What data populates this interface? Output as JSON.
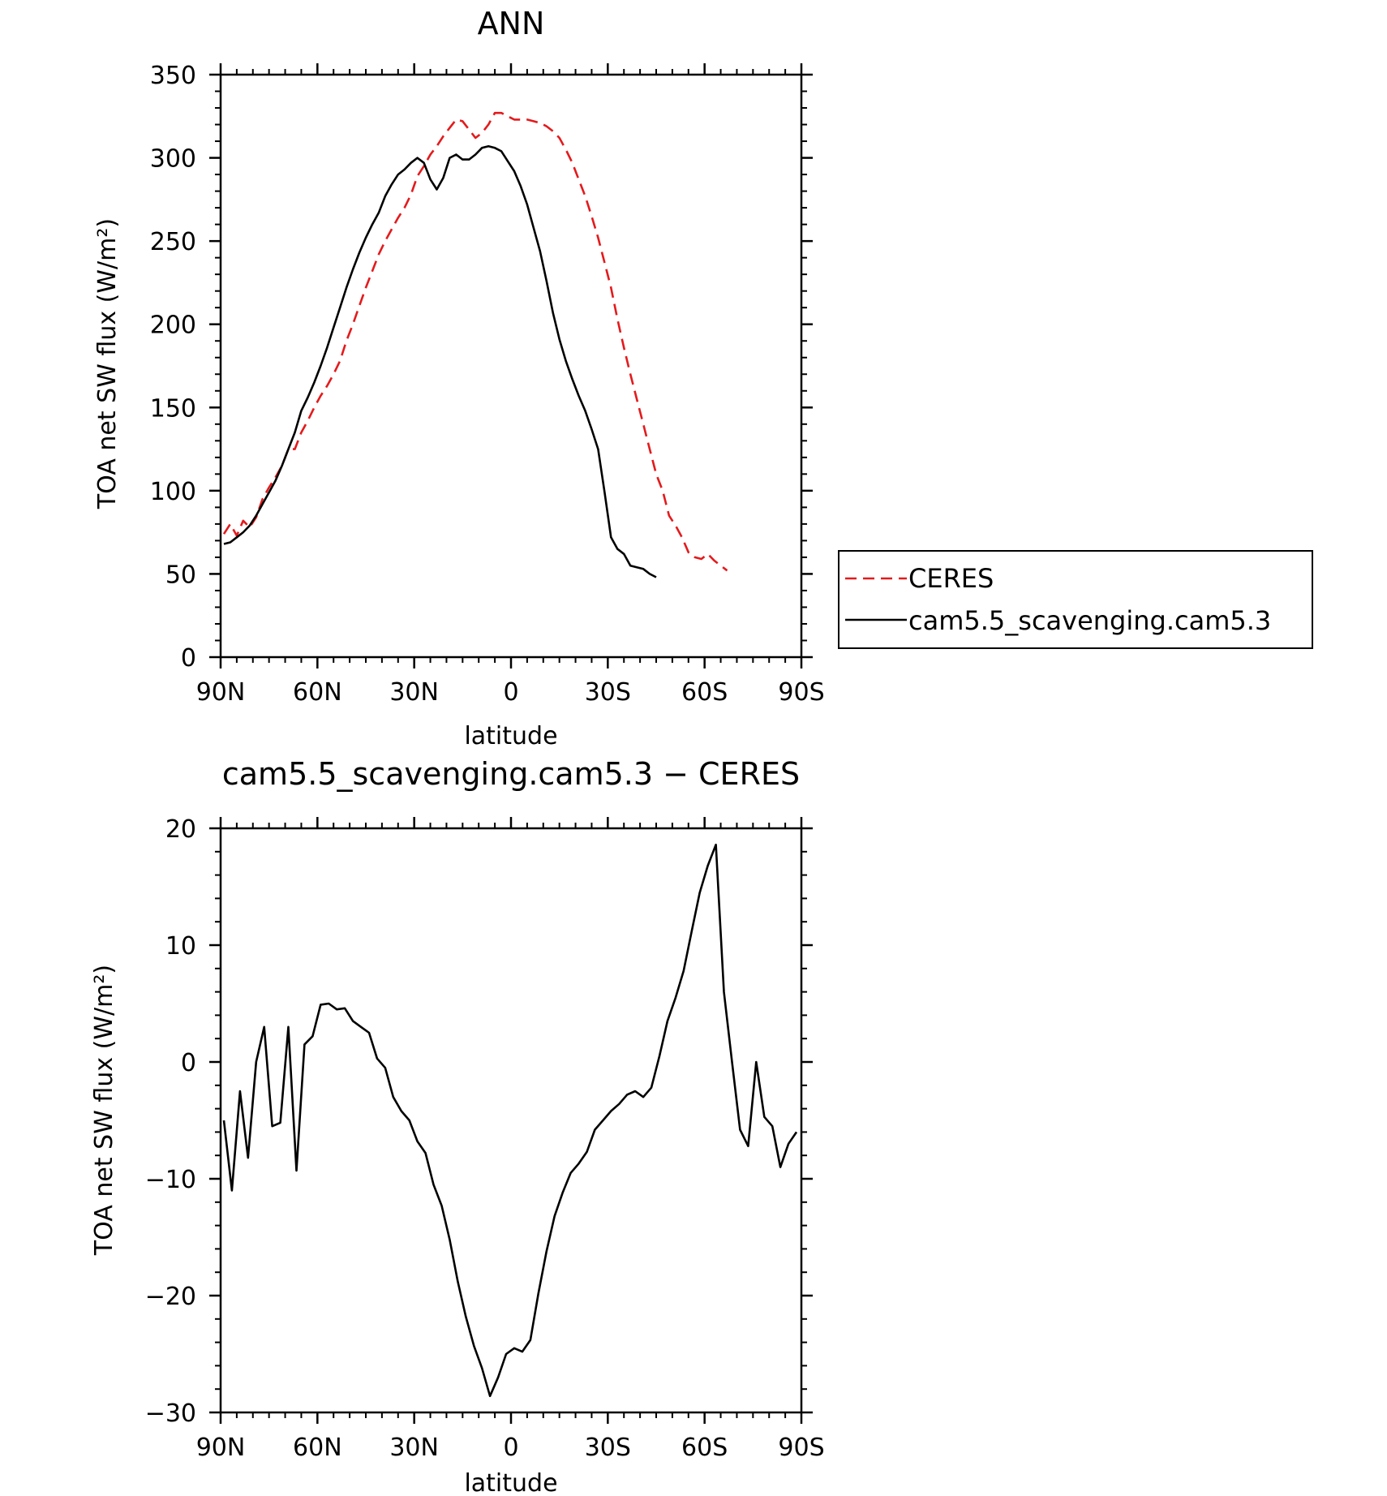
{
  "chart_data": [
    {
      "type": "line",
      "title": "ANN",
      "xlabel": "latitude",
      "ylabel": "TOA net SW flux (W/m²)",
      "xlim": [
        90,
        -90
      ],
      "ylim": [
        0,
        350
      ],
      "xticks": [
        90,
        60,
        30,
        0,
        -30,
        -60,
        -90
      ],
      "xtick_labels": [
        "90N",
        "60N",
        "30N",
        "0",
        "30S",
        "60S",
        "90S"
      ],
      "yticks": [
        0,
        50,
        100,
        150,
        200,
        250,
        300,
        350
      ],
      "ytick_labels": [
        "0",
        "50",
        "100",
        "150",
        "200",
        "250",
        "300",
        "350"
      ],
      "legend_position": "right",
      "series": [
        {
          "name": "CERES",
          "color": "#e41a1c",
          "style": "dashed",
          "points": [
            [
              89,
              74
            ],
            [
              87,
              80
            ],
            [
              85,
              73
            ],
            [
              83,
              82
            ],
            [
              81,
              78
            ],
            [
              79,
              84
            ],
            [
              77,
              95
            ],
            [
              75,
              102
            ],
            [
              73,
              108
            ],
            [
              71,
              115
            ],
            [
              69,
              125
            ],
            [
              67,
              125
            ],
            [
              65,
              135
            ],
            [
              63,
              142
            ],
            [
              61,
              150
            ],
            [
              59,
              157
            ],
            [
              57,
              163
            ],
            [
              55,
              170
            ],
            [
              53,
              178
            ],
            [
              51,
              190
            ],
            [
              49,
              200
            ],
            [
              47,
              211
            ],
            [
              45,
              222
            ],
            [
              43,
              232
            ],
            [
              41,
              242
            ],
            [
              39,
              250
            ],
            [
              37,
              257
            ],
            [
              35,
              264
            ],
            [
              33,
              270
            ],
            [
              31,
              278
            ],
            [
              29,
              289
            ],
            [
              27,
              295
            ],
            [
              25,
              302
            ],
            [
              23,
              307
            ],
            [
              21,
              313
            ],
            [
              19,
              318
            ],
            [
              17,
              323
            ],
            [
              15,
              322
            ],
            [
              13,
              317
            ],
            [
              11,
              312
            ],
            [
              9,
              315
            ],
            [
              7,
              320
            ],
            [
              5,
              327
            ],
            [
              3,
              327
            ],
            [
              1,
              325
            ],
            [
              -1,
              323
            ],
            [
              -3,
              323
            ],
            [
              -5,
              323
            ],
            [
              -7,
              322
            ],
            [
              -9,
              321
            ],
            [
              -11,
              319
            ],
            [
              -13,
              316
            ],
            [
              -15,
              312
            ],
            [
              -17,
              305
            ],
            [
              -19,
              297
            ],
            [
              -21,
              287
            ],
            [
              -23,
              277
            ],
            [
              -25,
              265
            ],
            [
              -27,
              252
            ],
            [
              -29,
              237
            ],
            [
              -31,
              222
            ],
            [
              -33,
              203
            ],
            [
              -35,
              186
            ],
            [
              -37,
              170
            ],
            [
              -39,
              155
            ],
            [
              -41,
              140
            ],
            [
              -43,
              125
            ],
            [
              -45,
              110
            ],
            [
              -47,
              100
            ],
            [
              -49,
              85
            ],
            [
              -51,
              79
            ],
            [
              -53,
              72
            ],
            [
              -55,
              63
            ],
            [
              -57,
              60
            ],
            [
              -59,
              59
            ],
            [
              -61,
              62
            ],
            [
              -63,
              58
            ],
            [
              -65,
              55
            ],
            [
              -67,
              52
            ]
          ]
        },
        {
          "name": "cam5.5_scavenging.cam5.3",
          "color": "#000000",
          "style": "solid",
          "points": [
            [
              89,
              68
            ],
            [
              87,
              69
            ],
            [
              85,
              72
            ],
            [
              83,
              75
            ],
            [
              81,
              79
            ],
            [
              79,
              85
            ],
            [
              77,
              92
            ],
            [
              75,
              99
            ],
            [
              73,
              106
            ],
            [
              71,
              115
            ],
            [
              69,
              125
            ],
            [
              67,
              135
            ],
            [
              65,
              148
            ],
            [
              63,
              156
            ],
            [
              61,
              165
            ],
            [
              59,
              175
            ],
            [
              57,
              186
            ],
            [
              55,
              198
            ],
            [
              53,
              210
            ],
            [
              51,
              222
            ],
            [
              49,
              233
            ],
            [
              47,
              243
            ],
            [
              45,
              252
            ],
            [
              43,
              260
            ],
            [
              41,
              267
            ],
            [
              39,
              277
            ],
            [
              37,
              284
            ],
            [
              35,
              290
            ],
            [
              33,
              293
            ],
            [
              31,
              297
            ],
            [
              29,
              300
            ],
            [
              27,
              297
            ],
            [
              25,
              287
            ],
            [
              23,
              281
            ],
            [
              21,
              288
            ],
            [
              19,
              300
            ],
            [
              17,
              302
            ],
            [
              15,
              299
            ],
            [
              13,
              299
            ],
            [
              11,
              302
            ],
            [
              9,
              306
            ],
            [
              7,
              307
            ],
            [
              5,
              306
            ],
            [
              3,
              304
            ],
            [
              1,
              298
            ],
            [
              -1,
              292
            ],
            [
              -3,
              283
            ],
            [
              -5,
              272
            ],
            [
              -7,
              258
            ],
            [
              -9,
              244
            ],
            [
              -11,
              226
            ],
            [
              -13,
              207
            ],
            [
              -15,
              191
            ],
            [
              -17,
              178
            ],
            [
              -19,
              167
            ],
            [
              -21,
              157
            ],
            [
              -23,
              148
            ],
            [
              -25,
              137
            ],
            [
              -27,
              125
            ],
            [
              -29,
              99
            ],
            [
              -31,
              72
            ],
            [
              -33,
              65
            ],
            [
              -35,
              62
            ],
            [
              -37,
              55
            ],
            [
              -39,
              54
            ],
            [
              -41,
              53
            ],
            [
              -43,
              50
            ],
            [
              -45,
              48
            ]
          ]
        }
      ]
    },
    {
      "type": "line",
      "title": "cam5.5_scavenging.cam5.3 − CERES",
      "xlabel": "latitude",
      "ylabel": "TOA net SW flux (W/m²)",
      "xlim": [
        90,
        -90
      ],
      "ylim": [
        -30,
        20
      ],
      "xticks": [
        90,
        60,
        30,
        0,
        -30,
        -60,
        -90
      ],
      "xtick_labels": [
        "90N",
        "60N",
        "30N",
        "0",
        "30S",
        "60S",
        "90S"
      ],
      "yticks": [
        -30,
        -20,
        -10,
        0,
        10,
        20
      ],
      "ytick_labels": [
        "−30",
        "−20",
        "−10",
        "0",
        "10",
        "20"
      ],
      "series": [
        {
          "color": "#000000",
          "style": "solid",
          "points": [
            [
              89,
              -5
            ],
            [
              86.5,
              -11
            ],
            [
              84,
              -2.5
            ],
            [
              81.5,
              -8.2
            ],
            [
              79,
              0
            ],
            [
              76.5,
              3
            ],
            [
              74,
              -5.5
            ],
            [
              71.5,
              -5.2
            ],
            [
              69,
              3
            ],
            [
              66.5,
              -9.3
            ],
            [
              64,
              1.5
            ],
            [
              61.5,
              2.2
            ],
            [
              59,
              4.9
            ],
            [
              56.5,
              5
            ],
            [
              54,
              4.5
            ],
            [
              51.5,
              4.6
            ],
            [
              49,
              3.5
            ],
            [
              46.5,
              3
            ],
            [
              44,
              2.5
            ],
            [
              41.5,
              0.3
            ],
            [
              39,
              -0.5
            ],
            [
              36.5,
              -3
            ],
            [
              34,
              -4.2
            ],
            [
              31.5,
              -5
            ],
            [
              29,
              -6.8
            ],
            [
              26.5,
              -7.8
            ],
            [
              24,
              -10.5
            ],
            [
              21.5,
              -12.3
            ],
            [
              19,
              -15.2
            ],
            [
              16.5,
              -18.8
            ],
            [
              14,
              -21.8
            ],
            [
              11.5,
              -24.3
            ],
            [
              9,
              -26.2
            ],
            [
              6.5,
              -28.6
            ],
            [
              4,
              -27
            ],
            [
              1.5,
              -25
            ],
            [
              -1,
              -24.5
            ],
            [
              -3.5,
              -24.8
            ],
            [
              -6,
              -23.8
            ],
            [
              -8.5,
              -19.8
            ],
            [
              -11,
              -16.2
            ],
            [
              -13.5,
              -13.2
            ],
            [
              -16,
              -11.2
            ],
            [
              -18.5,
              -9.5
            ],
            [
              -21,
              -8.7
            ],
            [
              -23.5,
              -7.7
            ],
            [
              -26,
              -5.8
            ],
            [
              -28.5,
              -5
            ],
            [
              -31,
              -4.2
            ],
            [
              -33.5,
              -3.6
            ],
            [
              -36,
              -2.8
            ],
            [
              -38.5,
              -2.5
            ],
            [
              -41,
              -3
            ],
            [
              -43.5,
              -2.2
            ],
            [
              -46,
              0.5
            ],
            [
              -48.5,
              3.5
            ],
            [
              -51,
              5.5
            ],
            [
              -53.5,
              7.8
            ],
            [
              -56,
              11.2
            ],
            [
              -58.5,
              14.5
            ],
            [
              -61,
              16.8
            ],
            [
              -63.5,
              18.6
            ],
            [
              -66,
              6
            ],
            [
              -68.5,
              0
            ],
            [
              -71,
              -5.8
            ],
            [
              -73.5,
              -7.2
            ],
            [
              -76,
              0
            ],
            [
              -78.5,
              -4.7
            ],
            [
              -81,
              -5.5
            ],
            [
              -83.5,
              -9
            ],
            [
              -86,
              -7
            ],
            [
              -88.5,
              -6
            ]
          ]
        }
      ]
    }
  ],
  "legend": {
    "items": [
      {
        "label": "CERES",
        "color": "#e41a1c",
        "style": "dashed"
      },
      {
        "label": "cam5.5_scavenging.cam5.3",
        "color": "#000000",
        "style": "solid"
      }
    ]
  }
}
